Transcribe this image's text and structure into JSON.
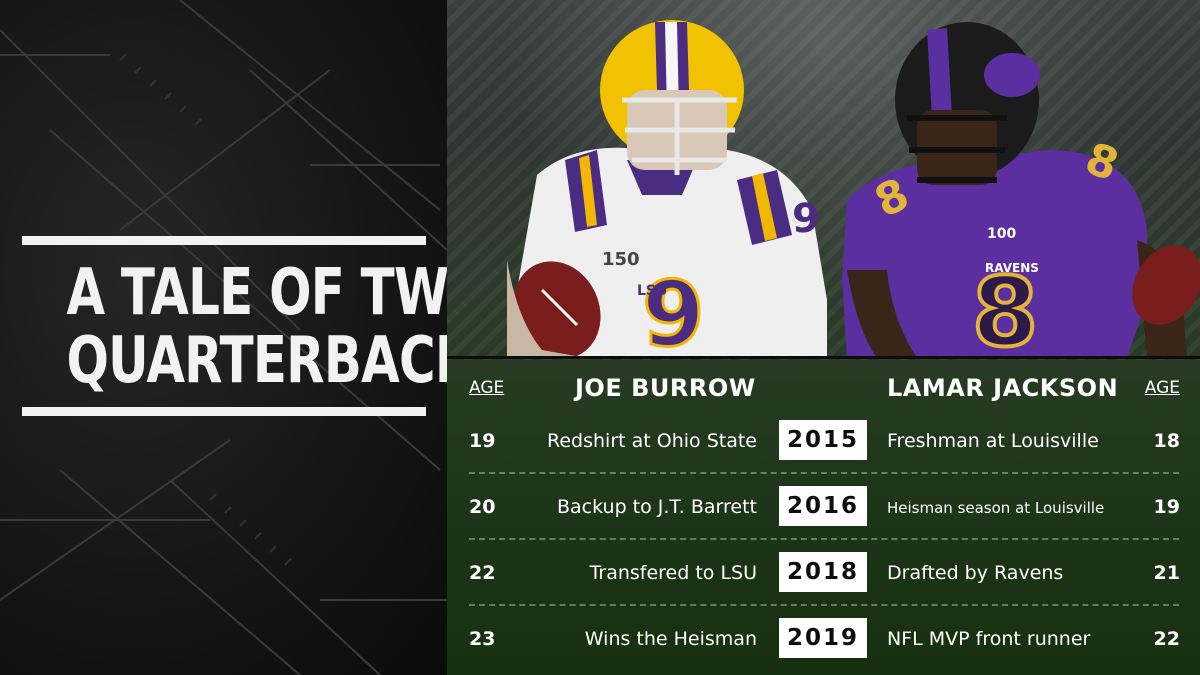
{
  "title": {
    "line1": "A TALE OF TWO",
    "line2": "QUARTERBACKS"
  },
  "players": {
    "left": {
      "name": "JOE BURROW",
      "jersey": {
        "team_mark": "LSU",
        "number": "9",
        "patch": "150"
      },
      "colors": {
        "jersey": "#f1f1f1",
        "stripe": "#4b2c83",
        "accent": "#f2b700",
        "helmet": "#f2c200"
      }
    },
    "right": {
      "name": "LAMAR JACKSON",
      "jersey": {
        "team_mark": "RAVENS",
        "number": "8",
        "patch": "100"
      },
      "colors": {
        "jersey": "#5b2fa0",
        "accent": "#e2b53a",
        "helmet": "#1b1b1b"
      }
    }
  },
  "table": {
    "age_header_left": "AGE",
    "age_header_right": "AGE",
    "rows": [
      {
        "age_left": "19",
        "event_left": "Redshirt at Ohio State",
        "year": "2015",
        "event_right": "Freshman at Louisville",
        "age_right": "18"
      },
      {
        "age_left": "20",
        "event_left": "Backup to J.T. Barrett",
        "year": "2016",
        "event_right": "Heisman season at Louisville",
        "age_right": "19"
      },
      {
        "age_left": "22",
        "event_left": "Transfered to LSU",
        "year": "2018",
        "event_right": "Drafted by Ravens",
        "age_right": "21"
      },
      {
        "age_left": "23",
        "event_left": "Wins the Heisman",
        "year": "2019",
        "event_right": "NFL MVP front runner",
        "age_right": "22"
      }
    ]
  },
  "colors": {
    "title_text": "#f2f2f2",
    "panel_dark": "#161616",
    "field_green": "#1d3518",
    "year_box": "#ffffff"
  }
}
